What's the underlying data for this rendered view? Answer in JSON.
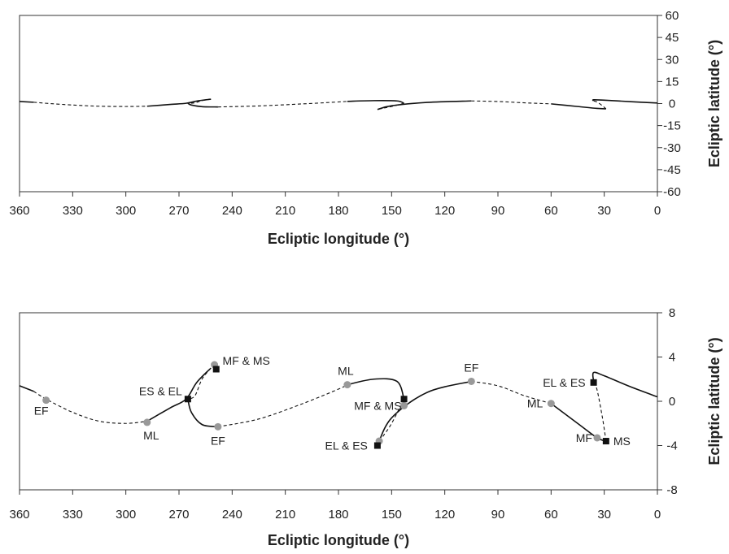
{
  "chart_data": [
    {
      "type": "line",
      "xlabel": "Ecliptic longitude (°)",
      "ylabel": "Ecliptic latitude (°)",
      "xlim": [
        360,
        0
      ],
      "ylim": [
        -60,
        60
      ],
      "xticks": [
        360,
        330,
        300,
        270,
        240,
        210,
        180,
        150,
        120,
        90,
        60,
        30,
        0
      ],
      "yticks": [
        60,
        45,
        30,
        15,
        0,
        -15,
        -30,
        -45,
        -60
      ],
      "y_axis_side": "right",
      "grid": false,
      "series": [
        {
          "style": "solid",
          "points": [
            [
              360,
              1.4
            ],
            [
              352,
              0.9
            ]
          ]
        },
        {
          "style": "dashed",
          "points": [
            [
              352,
              0.9
            ],
            [
              345,
              0.2
            ],
            [
              330,
              -1.0
            ],
            [
              315,
              -1.8
            ],
            [
              300,
              -2.0
            ],
            [
              288,
              -1.8
            ]
          ]
        },
        {
          "style": "solid",
          "points": [
            [
              288,
              -1.8
            ],
            [
              275,
              -0.6
            ],
            [
              266,
              0.2
            ],
            [
              260,
              1.7
            ],
            [
              252,
              3.0
            ]
          ]
        },
        {
          "style": "dashed",
          "points": [
            [
              252,
              3.0
            ],
            [
              257,
              2.0
            ],
            [
              261,
              0.5
            ],
            [
              265,
              0.2
            ]
          ]
        },
        {
          "style": "solid",
          "points": [
            [
              265,
              0.2
            ],
            [
              263,
              -1.0
            ],
            [
              257,
              -2.1
            ],
            [
              248,
              -2.3
            ]
          ]
        },
        {
          "style": "dashed",
          "points": [
            [
              248,
              -2.3
            ],
            [
              225,
              -1.6
            ],
            [
              200,
              -0.2
            ],
            [
              180,
              1.1
            ],
            [
              175,
              1.5
            ]
          ]
        },
        {
          "style": "solid",
          "points": [
            [
              175,
              1.5
            ],
            [
              160,
              2.0
            ],
            [
              147,
              1.8
            ],
            [
              143,
              0.2
            ]
          ]
        },
        {
          "style": "dashed",
          "points": [
            [
              143,
              0.2
            ],
            [
              150,
              -2.0
            ],
            [
              155,
              -3.2
            ],
            [
              158,
              -4.0
            ]
          ]
        },
        {
          "style": "solid",
          "points": [
            [
              158,
              -4.0
            ],
            [
              150,
              -1.5
            ],
            [
              130,
              0.8
            ],
            [
              105,
              1.8
            ]
          ]
        },
        {
          "style": "dashed",
          "points": [
            [
              105,
              1.8
            ],
            [
              90,
              1.4
            ],
            [
              75,
              0.5
            ],
            [
              60,
              -0.2
            ]
          ]
        },
        {
          "style": "solid",
          "points": [
            [
              60,
              -0.2
            ],
            [
              45,
              -2.0
            ],
            [
              34,
              -3.3
            ],
            [
              29,
              -3.6
            ]
          ]
        },
        {
          "style": "dashed",
          "points": [
            [
              29,
              -3.6
            ],
            [
              31,
              -1.5
            ],
            [
              34,
              1.0
            ],
            [
              36,
              1.8
            ]
          ]
        },
        {
          "style": "solid",
          "points": [
            [
              36,
              1.8
            ],
            [
              36,
              2.6
            ],
            [
              30,
              2.3
            ],
            [
              15,
              1.3
            ],
            [
              0,
              0.4
            ]
          ]
        }
      ]
    },
    {
      "type": "line",
      "xlabel": "Ecliptic longitude (°)",
      "ylabel": "Ecliptic latitude (°)",
      "xlim": [
        360,
        0
      ],
      "ylim": [
        -8,
        8
      ],
      "xticks": [
        360,
        330,
        300,
        270,
        240,
        210,
        180,
        150,
        120,
        90,
        60,
        30,
        0
      ],
      "yticks": [
        8,
        4,
        0,
        -4,
        -8
      ],
      "y_axis_side": "right",
      "grid": false,
      "series": [
        {
          "style": "solid",
          "points": [
            [
              360,
              1.4
            ],
            [
              352,
              0.9
            ]
          ]
        },
        {
          "style": "dashed",
          "points": [
            [
              352,
              0.9
            ],
            [
              345,
              0.2
            ],
            [
              330,
              -1.0
            ],
            [
              315,
              -1.8
            ],
            [
              300,
              -2.0
            ],
            [
              288,
              -1.8
            ]
          ]
        },
        {
          "style": "solid",
          "points": [
            [
              288,
              -1.8
            ],
            [
              275,
              -0.6
            ],
            [
              266,
              0.2
            ],
            [
              260,
              1.7
            ],
            [
              252,
              3.0
            ]
          ]
        },
        {
          "style": "dashed",
          "points": [
            [
              252,
              3.0
            ],
            [
              257,
              2.0
            ],
            [
              261,
              0.5
            ],
            [
              265,
              0.2
            ]
          ]
        },
        {
          "style": "solid",
          "points": [
            [
              265,
              0.2
            ],
            [
              263,
              -1.0
            ],
            [
              257,
              -2.1
            ],
            [
              248,
              -2.3
            ]
          ]
        },
        {
          "style": "dashed",
          "points": [
            [
              248,
              -2.3
            ],
            [
              225,
              -1.6
            ],
            [
              200,
              -0.2
            ],
            [
              180,
              1.1
            ],
            [
              175,
              1.5
            ]
          ]
        },
        {
          "style": "solid",
          "points": [
            [
              175,
              1.5
            ],
            [
              160,
              2.0
            ],
            [
              147,
              1.8
            ],
            [
              143,
              0.2
            ]
          ]
        },
        {
          "style": "dashed",
          "points": [
            [
              143,
              0.2
            ],
            [
              150,
              -2.0
            ],
            [
              155,
              -3.2
            ],
            [
              158,
              -4.0
            ]
          ]
        },
        {
          "style": "solid",
          "points": [
            [
              158,
              -4.0
            ],
            [
              150,
              -1.5
            ],
            [
              130,
              0.8
            ],
            [
              105,
              1.8
            ]
          ]
        },
        {
          "style": "dashed",
          "points": [
            [
              105,
              1.8
            ],
            [
              90,
              1.4
            ],
            [
              75,
              0.5
            ],
            [
              60,
              -0.2
            ]
          ]
        },
        {
          "style": "solid",
          "points": [
            [
              60,
              -0.2
            ],
            [
              45,
              -2.0
            ],
            [
              34,
              -3.3
            ],
            [
              29,
              -3.6
            ]
          ]
        },
        {
          "style": "dashed",
          "points": [
            [
              29,
              -3.6
            ],
            [
              31,
              -1.5
            ],
            [
              34,
              1.0
            ],
            [
              36,
              1.8
            ]
          ]
        },
        {
          "style": "solid",
          "points": [
            [
              36,
              1.8
            ],
            [
              36,
              2.6
            ],
            [
              30,
              2.3
            ],
            [
              15,
              1.3
            ],
            [
              0,
              0.4
            ]
          ]
        }
      ],
      "markers": [
        {
          "kind": "circle",
          "x": 345,
          "y": 0.1,
          "color": "#999999"
        },
        {
          "kind": "circle",
          "x": 288,
          "y": -1.9,
          "color": "#999999"
        },
        {
          "kind": "circle",
          "x": 250,
          "y": 3.3,
          "color": "#999999"
        },
        {
          "kind": "circle",
          "x": 248,
          "y": -2.3,
          "color": "#999999"
        },
        {
          "kind": "circle",
          "x": 175,
          "y": 1.5,
          "color": "#999999"
        },
        {
          "kind": "circle",
          "x": 143,
          "y": -0.4,
          "color": "#999999"
        },
        {
          "kind": "circle",
          "x": 157,
          "y": -3.6,
          "color": "#999999"
        },
        {
          "kind": "circle",
          "x": 105,
          "y": 1.8,
          "color": "#999999"
        },
        {
          "kind": "circle",
          "x": 60,
          "y": -0.2,
          "color": "#999999"
        },
        {
          "kind": "circle",
          "x": 34,
          "y": -3.3,
          "color": "#999999"
        },
        {
          "kind": "square",
          "x": 249,
          "y": 2.9,
          "color": "#111111"
        },
        {
          "kind": "square",
          "x": 265,
          "y": 0.2,
          "color": "#111111"
        },
        {
          "kind": "square",
          "x": 143,
          "y": 0.2,
          "color": "#111111"
        },
        {
          "kind": "square",
          "x": 158,
          "y": -4.0,
          "color": "#111111"
        },
        {
          "kind": "square",
          "x": 36,
          "y": 1.7,
          "color": "#111111"
        },
        {
          "kind": "square",
          "x": 29,
          "y": -3.6,
          "color": "#111111"
        }
      ],
      "annotations": [
        {
          "text": "EF",
          "x": 345,
          "y": 0.1
        },
        {
          "text": "ML",
          "x": 288,
          "y": -1.9
        },
        {
          "text": "MF & MS",
          "x": 250,
          "y": 3.3
        },
        {
          "text": "ES & EL",
          "x": 265,
          "y": 0.2
        },
        {
          "text": "EF",
          "x": 248,
          "y": -2.3
        },
        {
          "text": "ML",
          "x": 175,
          "y": 1.5
        },
        {
          "text": "MF & MS",
          "x": 143,
          "y": -0.4
        },
        {
          "text": "EL & ES",
          "x": 158,
          "y": -4.0
        },
        {
          "text": "EF",
          "x": 105,
          "y": 1.8
        },
        {
          "text": "EL & ES",
          "x": 36,
          "y": 1.7
        },
        {
          "text": "ML",
          "x": 60,
          "y": -0.2
        },
        {
          "text": "MF",
          "x": 34,
          "y": -3.3
        },
        {
          "text": "MS",
          "x": 29,
          "y": -3.6
        }
      ]
    }
  ]
}
